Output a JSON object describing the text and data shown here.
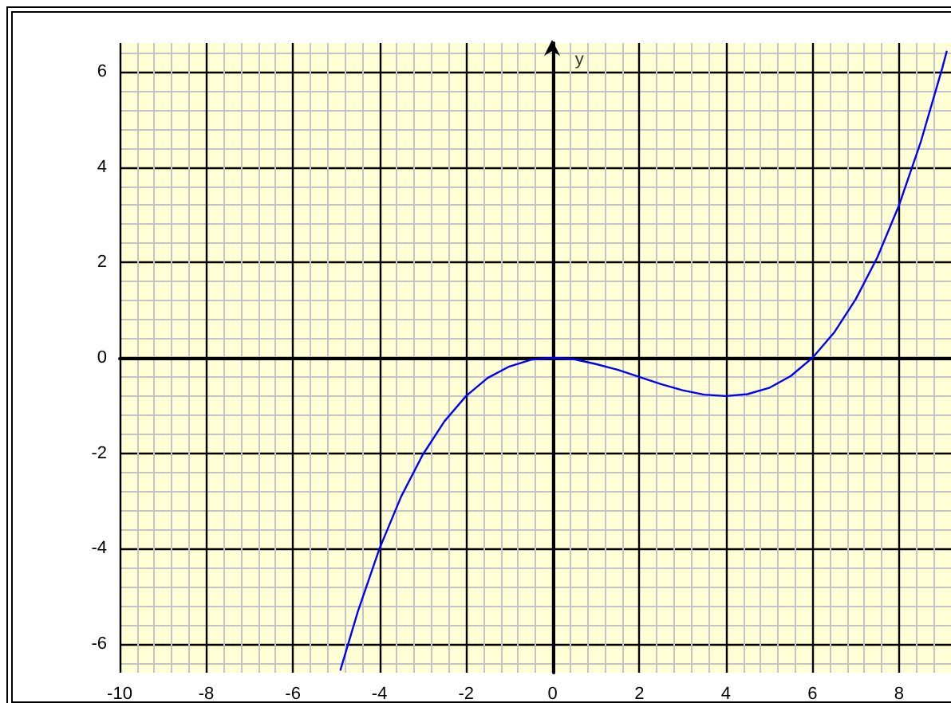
{
  "chart_data": {
    "type": "line",
    "ylabel": "y",
    "x": [
      -4.9,
      -4.5,
      -4,
      -3.5,
      -3,
      -2.5,
      -2,
      -1.5,
      -1,
      -0.5,
      0,
      0.5,
      1,
      1.5,
      2,
      2.5,
      3,
      3.5,
      4,
      4.5,
      5,
      5.5,
      6,
      6.5,
      7,
      7.5,
      8,
      8.5,
      9,
      9.1
    ],
    "series": [
      {
        "color": "#0000ff",
        "values": [
          -6.54,
          -5.32,
          -4,
          -2.91,
          -2.03,
          -1.33,
          -0.8,
          -0.42,
          -0.18,
          -0.04,
          0,
          -0.03,
          -0.13,
          -0.25,
          -0.4,
          -0.55,
          -0.68,
          -0.77,
          -0.8,
          -0.76,
          -0.63,
          -0.38,
          0,
          0.53,
          1.23,
          2.11,
          3.2,
          4.52,
          6.08,
          6.42
        ]
      }
    ],
    "xlim": [
      -10,
      9.2
    ],
    "ylim": [
      -6.6,
      6.6
    ],
    "xticks": [
      -10,
      -8,
      -6,
      -4,
      -2,
      0,
      2,
      4,
      6,
      8
    ],
    "yticks": [
      -6,
      -4,
      -2,
      0,
      2,
      4,
      6
    ],
    "grid": true,
    "marker": "none",
    "line_style": "solid"
  }
}
